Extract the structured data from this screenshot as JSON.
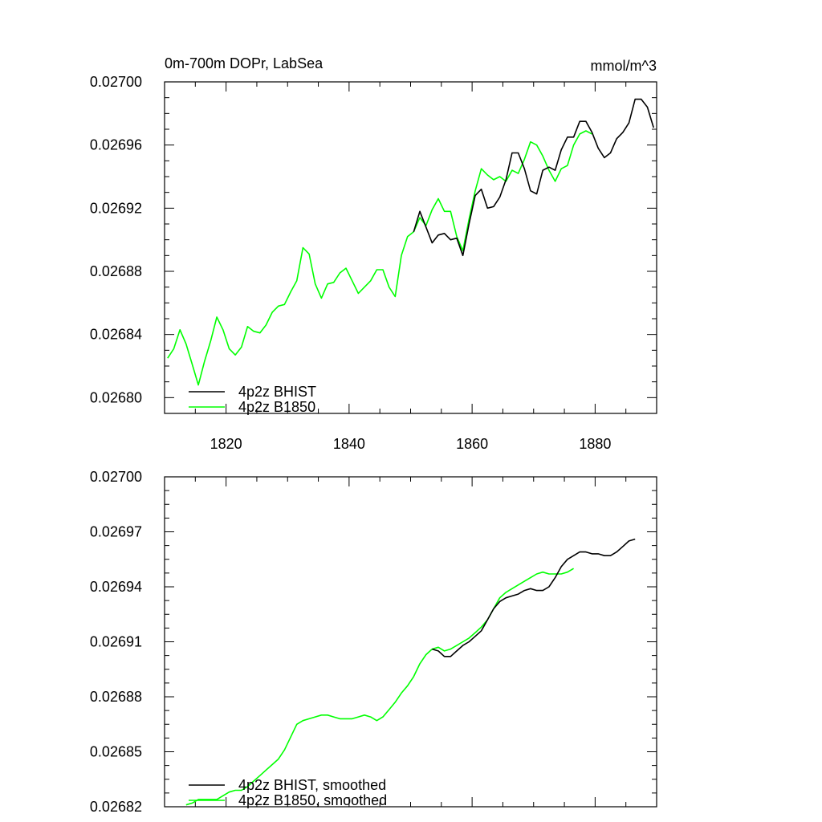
{
  "chart_data": [
    {
      "type": "line",
      "title": "0m-700m DOPr, LabSea",
      "units": "mmol/m^3",
      "xlim": [
        1810,
        1890
      ],
      "ylim": [
        0.02679,
        0.027
      ],
      "x_ticks": [
        1820,
        1840,
        1860,
        1880
      ],
      "y_ticks": [
        "0.02680",
        "0.02684",
        "0.02688",
        "0.02692",
        "0.02696",
        "0.02700"
      ],
      "y_tick_values": [
        0.0268,
        0.02684,
        0.02688,
        0.02692,
        0.02696,
        0.027
      ],
      "legend_position": "bottom-left",
      "series": [
        {
          "name": "4p2z BHIST",
          "color": "#000000",
          "x": [
            1850.5,
            1851.5,
            1852.5,
            1853.5,
            1854.5,
            1855.5,
            1856.5,
            1857.5,
            1858.5,
            1859.5,
            1860.5,
            1861.5,
            1862.5,
            1863.5,
            1864.5,
            1865.5,
            1866.5,
            1867.5,
            1868.5,
            1869.5,
            1870.5,
            1871.5,
            1872.5,
            1873.5,
            1874.5,
            1875.5,
            1876.5,
            1877.5,
            1878.5,
            1879.5,
            1880.5,
            1881.5,
            1882.5,
            1883.5,
            1884.5,
            1885.5,
            1886.5,
            1887.5,
            1888.5,
            1889.5
          ],
          "values": [
            0.026905,
            0.026918,
            0.026908,
            0.026898,
            0.026903,
            0.026904,
            0.0269,
            0.026901,
            0.02689,
            0.02691,
            0.026928,
            0.026932,
            0.02692,
            0.026921,
            0.026927,
            0.026938,
            0.026955,
            0.026955,
            0.026945,
            0.026931,
            0.026929,
            0.026944,
            0.026946,
            0.026944,
            0.026957,
            0.026965,
            0.026965,
            0.026975,
            0.026975,
            0.026968,
            0.026958,
            0.026952,
            0.026955,
            0.026964,
            0.026968,
            0.026974,
            0.026989,
            0.026989,
            0.026984,
            0.026971
          ]
        },
        {
          "name": "4p2z B1850",
          "color": "#00ff00",
          "x": [
            1810.5,
            1811.5,
            1812.5,
            1813.5,
            1814.5,
            1815.5,
            1816.5,
            1817.5,
            1818.5,
            1819.5,
            1820.5,
            1821.5,
            1822.5,
            1823.5,
            1824.5,
            1825.5,
            1826.5,
            1827.5,
            1828.5,
            1829.5,
            1830.5,
            1831.5,
            1832.5,
            1833.5,
            1834.5,
            1835.5,
            1836.5,
            1837.5,
            1838.5,
            1839.5,
            1840.5,
            1841.5,
            1842.5,
            1843.5,
            1844.5,
            1845.5,
            1846.5,
            1847.5,
            1848.5,
            1849.5,
            1850.5,
            1851.5,
            1852.5,
            1853.5,
            1854.5,
            1855.5,
            1856.5,
            1857.5,
            1858.5,
            1859.5,
            1860.5,
            1861.5,
            1862.5,
            1863.5,
            1864.5,
            1865.5,
            1866.5,
            1867.5,
            1868.5,
            1869.5,
            1870.5,
            1871.5,
            1872.5,
            1873.5,
            1874.5,
            1875.5,
            1876.5,
            1877.5,
            1878.5,
            1879.5
          ],
          "values": [
            0.026825,
            0.026831,
            0.026843,
            0.026834,
            0.026821,
            0.026808,
            0.026823,
            0.026836,
            0.026851,
            0.026843,
            0.026831,
            0.026827,
            0.026832,
            0.026845,
            0.026842,
            0.026841,
            0.026846,
            0.026854,
            0.026858,
            0.026859,
            0.026867,
            0.026874,
            0.026895,
            0.026891,
            0.026872,
            0.026863,
            0.026872,
            0.026873,
            0.026879,
            0.026882,
            0.026874,
            0.026866,
            0.02687,
            0.026874,
            0.026881,
            0.026881,
            0.02687,
            0.026864,
            0.02689,
            0.026902,
            0.026905,
            0.026914,
            0.026909,
            0.026919,
            0.026926,
            0.026918,
            0.026918,
            0.026902,
            0.026893,
            0.026913,
            0.026931,
            0.026945,
            0.026941,
            0.026938,
            0.02694,
            0.026937,
            0.026944,
            0.026942,
            0.026951,
            0.026962,
            0.02696,
            0.026953,
            0.026944,
            0.026937,
            0.026945,
            0.026947,
            0.02696,
            0.026967,
            0.026969,
            0.026967
          ]
        }
      ]
    },
    {
      "type": "line",
      "xlim": [
        1810,
        1890
      ],
      "ylim": [
        0.02682,
        0.027
      ],
      "y_ticks": [
        "0.02682",
        "0.02685",
        "0.02688",
        "0.02691",
        "0.02694",
        "0.02697",
        "0.02700"
      ],
      "y_tick_values": [
        0.02682,
        0.02685,
        0.02688,
        0.02691,
        0.02694,
        0.02697,
        0.027
      ],
      "legend_position": "bottom-left",
      "series": [
        {
          "name": "4p2z BHIST, smoothed",
          "color": "#000000",
          "x": [
            1853.5,
            1854.5,
            1855.5,
            1856.5,
            1857.5,
            1858.5,
            1859.5,
            1860.5,
            1861.5,
            1862.5,
            1863.5,
            1864.5,
            1865.5,
            1866.5,
            1867.5,
            1868.5,
            1869.5,
            1870.5,
            1871.5,
            1872.5,
            1873.5,
            1874.5,
            1875.5,
            1876.5,
            1877.5,
            1878.5,
            1879.5,
            1880.5,
            1881.5,
            1882.5,
            1883.5,
            1884.5,
            1885.5,
            1886.5
          ],
          "values": [
            0.026906,
            0.026905,
            0.026902,
            0.026902,
            0.026905,
            0.026908,
            0.02691,
            0.026913,
            0.026916,
            0.026922,
            0.026928,
            0.026932,
            0.026934,
            0.026935,
            0.026936,
            0.026938,
            0.026939,
            0.026938,
            0.026938,
            0.02694,
            0.026945,
            0.026951,
            0.026955,
            0.026957,
            0.026959,
            0.026959,
            0.026958,
            0.026958,
            0.026957,
            0.026957,
            0.026959,
            0.026962,
            0.026965,
            0.026966
          ]
        },
        {
          "name": "4p2z B1850, smoothed",
          "color": "#00ff00",
          "x": [
            1813.5,
            1814.5,
            1815.5,
            1816.5,
            1817.5,
            1818.5,
            1819.5,
            1820.5,
            1821.5,
            1822.5,
            1823.5,
            1824.5,
            1825.5,
            1826.5,
            1827.5,
            1828.5,
            1829.5,
            1830.5,
            1831.5,
            1832.5,
            1833.5,
            1834.5,
            1835.5,
            1836.5,
            1837.5,
            1838.5,
            1839.5,
            1840.5,
            1841.5,
            1842.5,
            1843.5,
            1844.5,
            1845.5,
            1846.5,
            1847.5,
            1848.5,
            1849.5,
            1850.5,
            1851.5,
            1852.5,
            1853.5,
            1854.5,
            1855.5,
            1856.5,
            1857.5,
            1858.5,
            1859.5,
            1860.5,
            1861.5,
            1862.5,
            1863.5,
            1864.5,
            1865.5,
            1866.5,
            1867.5,
            1868.5,
            1869.5,
            1870.5,
            1871.5,
            1872.5,
            1873.5,
            1874.5,
            1875.5,
            1876.5
          ],
          "values": [
            0.026821,
            0.026822,
            0.026824,
            0.026824,
            0.026824,
            0.026824,
            0.026826,
            0.026828,
            0.026829,
            0.026829,
            0.026831,
            0.026834,
            0.026837,
            0.02684,
            0.026843,
            0.026846,
            0.026851,
            0.026858,
            0.026865,
            0.026867,
            0.026868,
            0.026869,
            0.02687,
            0.02687,
            0.026869,
            0.026868,
            0.026868,
            0.026868,
            0.026869,
            0.02687,
            0.026869,
            0.026867,
            0.026869,
            0.026873,
            0.026877,
            0.026882,
            0.026886,
            0.026891,
            0.026898,
            0.026903,
            0.026906,
            0.026907,
            0.026905,
            0.026906,
            0.026908,
            0.02691,
            0.026912,
            0.026915,
            0.026918,
            0.026922,
            0.026928,
            0.026934,
            0.026937,
            0.026939,
            0.026941,
            0.026943,
            0.026945,
            0.026947,
            0.026948,
            0.026947,
            0.026947,
            0.026947,
            0.026948,
            0.02695
          ]
        }
      ]
    }
  ]
}
